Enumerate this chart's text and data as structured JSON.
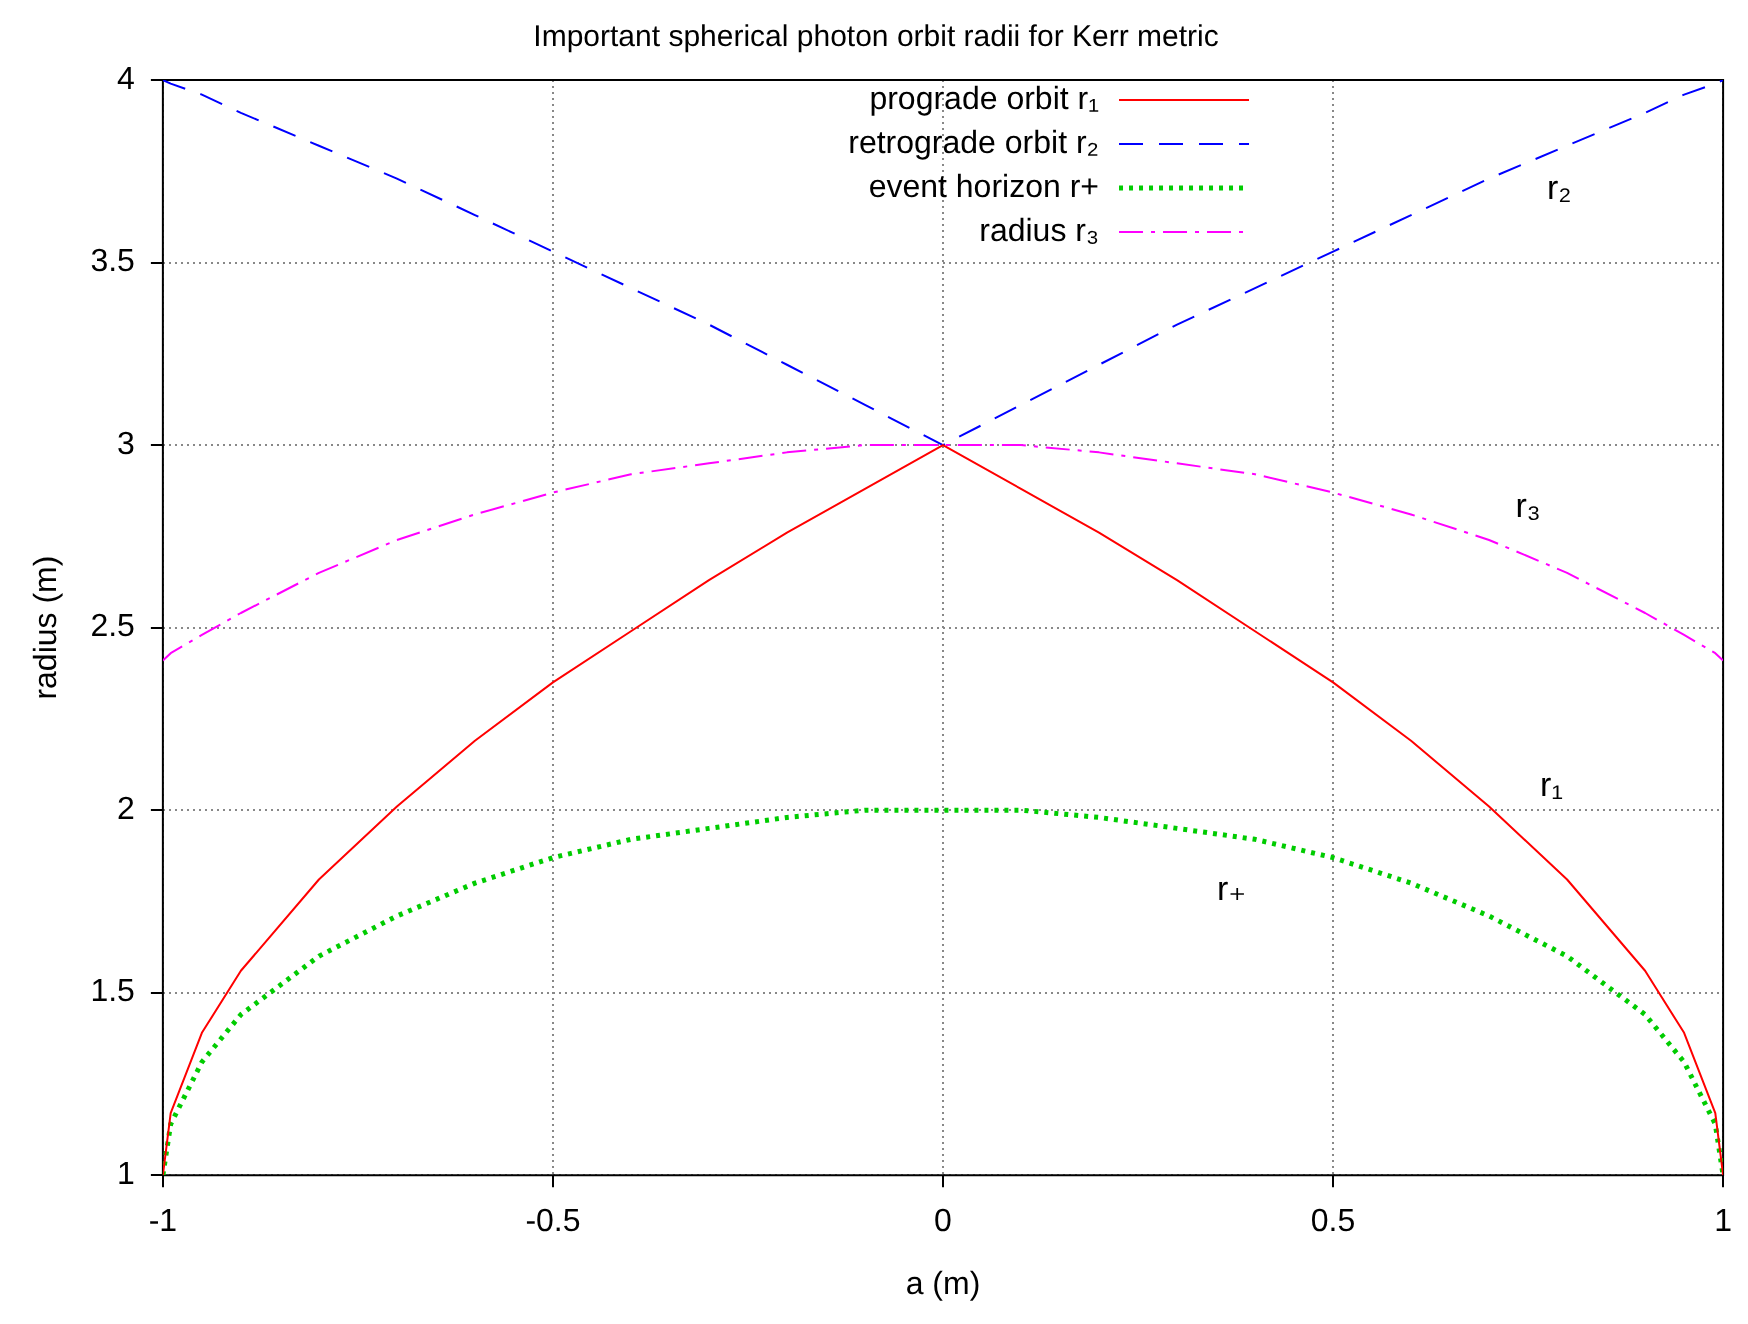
{
  "chart_data": {
    "type": "line",
    "title": "Important spherical photon orbit radii for Kerr metric",
    "xlabel": "a (m)",
    "ylabel": "radius (m)",
    "x": [
      -1,
      -0.99,
      -0.95,
      -0.9,
      -0.8,
      -0.7,
      -0.6,
      -0.5,
      -0.4,
      -0.3,
      -0.2,
      -0.1,
      0,
      0.1,
      0.2,
      0.3,
      0.4,
      0.5,
      0.6,
      0.7,
      0.8,
      0.9,
      0.95,
      0.99,
      1
    ],
    "series": [
      {
        "name": "prograde orbit r₁",
        "color": "#ff0000",
        "line_style": "solid",
        "values": [
          1,
          1.17,
          1.39,
          1.56,
          1.81,
          2.01,
          2.19,
          2.35,
          2.49,
          2.63,
          2.76,
          2.88,
          3,
          2.88,
          2.76,
          2.63,
          2.49,
          2.35,
          2.19,
          2.01,
          1.81,
          1.56,
          1.39,
          1.17,
          1
        ]
      },
      {
        "name": "retrograde orbit r₂",
        "color": "#0000ff",
        "line_style": "dashed",
        "values": [
          4,
          3.99,
          3.96,
          3.91,
          3.82,
          3.73,
          3.63,
          3.53,
          3.43,
          3.33,
          3.22,
          3.11,
          3,
          3.11,
          3.22,
          3.33,
          3.43,
          3.53,
          3.63,
          3.73,
          3.82,
          3.91,
          3.96,
          3.99,
          4
        ]
      },
      {
        "name": "event horizon r+",
        "color": "#00cc00",
        "line_style": "dotted",
        "values": [
          1,
          1.14,
          1.31,
          1.44,
          1.6,
          1.71,
          1.8,
          1.87,
          1.92,
          1.95,
          1.98,
          2,
          2,
          2,
          1.98,
          1.95,
          1.92,
          1.87,
          1.8,
          1.71,
          1.6,
          1.44,
          1.31,
          1.14,
          1
        ]
      },
      {
        "name": "radius r₃",
        "color": "#ff00ff",
        "line_style": "dashdot",
        "values": [
          2.41,
          2.43,
          2.48,
          2.54,
          2.65,
          2.74,
          2.81,
          2.87,
          2.92,
          2.95,
          2.98,
          3,
          3,
          3,
          2.98,
          2.95,
          2.92,
          2.87,
          2.81,
          2.74,
          2.65,
          2.54,
          2.48,
          2.43,
          2.41
        ]
      }
    ],
    "xlim": [
      -1,
      1
    ],
    "xticks": [
      -1,
      -0.5,
      0,
      0.5,
      1
    ],
    "ylim": [
      1,
      4
    ],
    "yticks": [
      1,
      1.5,
      2,
      2.5,
      3,
      3.5,
      4
    ],
    "grid": true,
    "legend": "top",
    "marker": "none",
    "annotations": [
      "r₂",
      "r₃",
      "r₁",
      "r₊"
    ]
  }
}
